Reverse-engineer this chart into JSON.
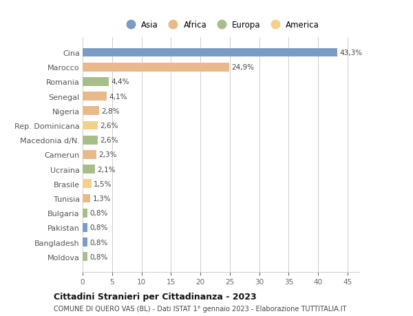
{
  "countries": [
    "Cina",
    "Marocco",
    "Romania",
    "Senegal",
    "Nigeria",
    "Rep. Dominicana",
    "Macedonia d/N.",
    "Camerun",
    "Ucraina",
    "Brasile",
    "Tunisia",
    "Bulgaria",
    "Pakistan",
    "Bangladesh",
    "Moldova"
  ],
  "values": [
    43.3,
    24.9,
    4.4,
    4.1,
    2.8,
    2.6,
    2.6,
    2.3,
    2.1,
    1.5,
    1.3,
    0.8,
    0.8,
    0.8,
    0.8
  ],
  "labels": [
    "43,3%",
    "24,9%",
    "4,4%",
    "4,1%",
    "2,8%",
    "2,6%",
    "2,6%",
    "2,3%",
    "2,1%",
    "1,5%",
    "1,3%",
    "0,8%",
    "0,8%",
    "0,8%",
    "0,8%"
  ],
  "colors": [
    "#7a9cc4",
    "#e8b98a",
    "#a8be8a",
    "#e8b98a",
    "#e8b98a",
    "#f5d08a",
    "#a8be8a",
    "#e8b98a",
    "#a8be8a",
    "#f5d08a",
    "#e8b98a",
    "#a8be8a",
    "#7a9cc4",
    "#7a9cc4",
    "#a8be8a"
  ],
  "legend_labels": [
    "Asia",
    "Africa",
    "Europa",
    "America"
  ],
  "legend_colors": [
    "#7a9cc4",
    "#e8b98a",
    "#a8be8a",
    "#f5d08a"
  ],
  "title": "Cittadini Stranieri per Cittadinanza - 2023",
  "subtitle": "COMUNE DI QUERO VAS (BL) - Dati ISTAT 1° gennaio 2023 - Elaborazione TUTTITALIA.IT",
  "xlim": [
    0,
    47
  ],
  "xticks": [
    0,
    5,
    10,
    15,
    20,
    25,
    30,
    35,
    40,
    45
  ],
  "background_color": "#ffffff",
  "grid_color": "#cccccc"
}
